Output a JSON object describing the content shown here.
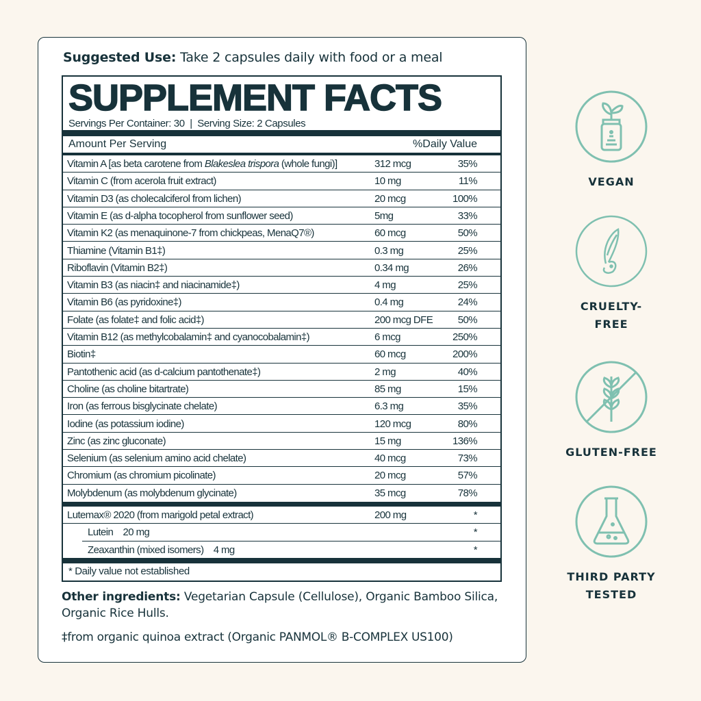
{
  "suggested_use": {
    "label": "Suggested Use:",
    "text": "Take 2 capsules daily with food or a meal"
  },
  "facts": {
    "title": "SUPPLEMENT FACTS",
    "servings": "Servings Per Container: 30  |  Serving Size: 2 Capsules",
    "header_amount": "Amount Per Serving",
    "header_dv": "%Daily Value",
    "rows": [
      {
        "name": "Vitamin A [as beta carotene from ",
        "italic": "Blakeslea trispora",
        "post": " (whole fungi)]",
        "amount": "312 mcg",
        "dv": "35%"
      },
      {
        "name": "Vitamin C (from acerola fruit extract)",
        "amount": "10 mg",
        "dv": "11%"
      },
      {
        "name": "Vitamin D3 (as cholecalciferol from lichen)",
        "amount": "20 mcg",
        "dv": "100%"
      },
      {
        "name": "Vitamin E (as d-alpha tocopherol from sunflower seed)",
        "amount": "5mg",
        "dv": "33%"
      },
      {
        "name": "Vitamin K2 (as menaquinone-7 from chickpeas, MenaQ7®)",
        "amount": "60 mcg",
        "dv": "50%"
      },
      {
        "name": "Thiamine (Vitamin B1‡)",
        "amount": "0.3 mg",
        "dv": "25%"
      },
      {
        "name": "Riboflavin (Vitamin B2‡)",
        "amount": "0.34 mg",
        "dv": "26%"
      },
      {
        "name": "Vitamin B3 (as niacin‡ and niacinamide‡)",
        "amount": "4 mg",
        "dv": "25%"
      },
      {
        "name": "Vitamin B6 (as pyridoxine‡)",
        "amount": "0.4 mg",
        "dv": "24%"
      },
      {
        "name": "Folate (as folate‡ and folic acid‡)",
        "amount": "200 mcg DFE",
        "dv": "50%"
      },
      {
        "name": "Vitamin B12 (as methylcobalamin‡ and cyanocobalamin‡)",
        "amount": "6 mcg",
        "dv": "250%"
      },
      {
        "name": "Biotin‡",
        "amount": "60 mcg",
        "dv": "200%"
      },
      {
        "name": "Pantothenic acid (as d-calcium pantothenate‡)",
        "amount": "2 mg",
        "dv": "40%"
      },
      {
        "name": "Choline (as choline bitartrate)",
        "amount": "85 mg",
        "dv": "15%"
      },
      {
        "name": "Iron (as ferrous bisglycinate chelate)",
        "amount": "6.3 mg",
        "dv": "35%"
      },
      {
        "name": "Iodine (as potassium iodine)",
        "amount": "120 mcg",
        "dv": "80%"
      },
      {
        "name": "Zinc (as zinc gluconate)",
        "amount": "15 mg",
        "dv": "136%"
      },
      {
        "name": "Selenium (as selenium amino acid chelate)",
        "amount": "40 mcg",
        "dv": "73%"
      },
      {
        "name": "Chromium (as chromium picolinate)",
        "amount": "20 mcg",
        "dv": "57%"
      },
      {
        "name": "Molybdenum (as molybdenum glycinate)",
        "amount": "35 mcg",
        "dv": "78%"
      }
    ],
    "lutemax": [
      {
        "name": "Lutemax® 2020 (from marigold petal extract)",
        "amount": "200 mg",
        "dv": "*"
      },
      {
        "name": "Lutein    20 mg",
        "amount": "",
        "dv": "*"
      },
      {
        "name": "Zeaxanthin (mixed isomers)    4 mg",
        "amount": "",
        "dv": "*"
      }
    ],
    "footnote": "* Daily value not established"
  },
  "other_ingredients": {
    "label": "Other ingredients:",
    "text": "Vegetarian Capsule (Cellulose), Organic Bamboo Silica, Organic Rice Hulls."
  },
  "dagger_note": "‡from organic quinoa extract (Organic PANMOL® B-COMPLEX US100)",
  "badges": [
    {
      "icon": "plant-jar-icon",
      "line1": "VEGAN",
      "line2": ""
    },
    {
      "icon": "rabbit-icon",
      "line1": "CRUELTY-",
      "line2": "FREE"
    },
    {
      "icon": "crossed-wheat-icon",
      "line1": "GLUTEN-FREE",
      "line2": ""
    },
    {
      "icon": "flask-icon",
      "line1": "THIRD PARTY",
      "line2": "TESTED"
    }
  ],
  "colors": {
    "background": "#fbf6ee",
    "text": "#17323a",
    "icon": "#7fc0b0"
  }
}
